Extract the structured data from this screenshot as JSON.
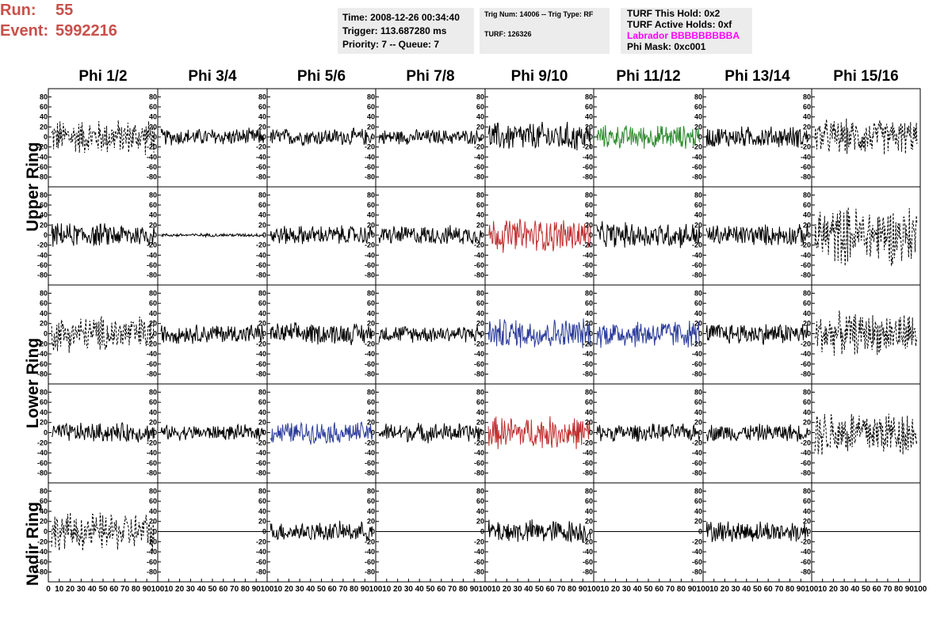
{
  "header": {
    "run_label": "Run:",
    "run_value": "55",
    "event_label": "Event:",
    "event_value": "5992216"
  },
  "info_time": {
    "time": "Time: 2008-12-26 00:34:40",
    "trigger": "Trigger: 113.687280 ms",
    "priority": "Priority: 7 -- Queue: 7"
  },
  "info_trig": {
    "trig": "Trig Num: 14006 -- Trig Type: RF",
    "turf": "TURF: 126326"
  },
  "info_turf": {
    "hold": "TURF This Hold: 0x2",
    "active": "TURF Active Holds: 0xf",
    "labrador": "Labrador BBBBBBBBBA",
    "phimask": "Phi Mask: 0xc001"
  },
  "colors": {
    "run_text": "#c8504a",
    "labrador": "#ff00ff",
    "green": "#2e8b2e",
    "red": "#c03030",
    "blue": "#2a3a9a",
    "black": "#000000"
  },
  "columns": [
    "Phi 1/2",
    "Phi 3/4",
    "Phi 5/6",
    "Phi 7/8",
    "Phi 9/10",
    "Phi 11/12",
    "Phi 13/14",
    "Phi 15/16"
  ],
  "rings": [
    "Upper Ring",
    "Lower Ring",
    "Nadir Ring"
  ],
  "chart_data": {
    "type": "line",
    "rows": 5,
    "cols": 8,
    "ylim": [
      -90,
      90
    ],
    "yticks": [
      "80",
      "60",
      "40",
      "20",
      "0",
      "-20",
      "-40",
      "-60",
      "-80"
    ],
    "xlim": [
      0,
      100
    ],
    "xticks_first": [
      "0",
      "10",
      "20",
      "30",
      "40",
      "50",
      "60",
      "70",
      "80",
      "90",
      "100"
    ],
    "xticks_rest": [
      "10",
      "20",
      "30",
      "40",
      "50",
      "60",
      "70",
      "80",
      "90",
      "100"
    ],
    "panels": [
      [
        "dashed:30",
        "black:16",
        "black:16",
        "black:14",
        "black:28",
        "green:22",
        "black:20",
        "dashed:30"
      ],
      [
        "black:22",
        "black:3",
        "black:18",
        "black:18",
        "red:32",
        "black:24",
        "black:20",
        "dashed:50"
      ],
      [
        "dashed:30",
        "black:18",
        "black:20",
        "black:16",
        "blue:28",
        "blue:26",
        "black:20",
        "dashed:35"
      ],
      [
        "black:18",
        "black:14",
        "blue:20",
        "black:18",
        "red:30",
        "black:16",
        "black:16",
        "dashed:40"
      ],
      [
        "dashed:32",
        "flat:0",
        "black:18",
        "flat:0",
        "black:22",
        "flat:0",
        "black:20",
        "flat:0"
      ]
    ]
  }
}
